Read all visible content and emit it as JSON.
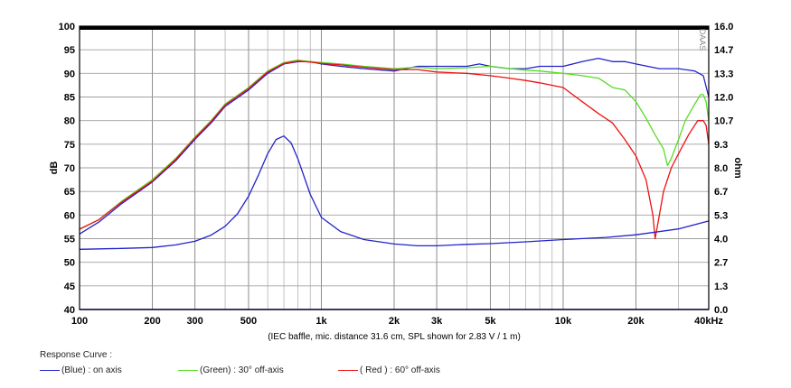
{
  "chart_data": {
    "type": "line",
    "watermark": "DAAS",
    "caption": "(IEC baffle, mic. distance 31.6 cm, SPL shown for 2.83 V / 1 m)",
    "x_axis": {
      "scale": "log",
      "range": [
        100,
        40000
      ],
      "unit_label": "kHz",
      "tick_values": [
        100,
        200,
        300,
        500,
        1000,
        2000,
        3000,
        5000,
        10000,
        20000,
        40000
      ],
      "tick_labels": [
        "100",
        "200",
        "300",
        "500",
        "1k",
        "2k",
        "3k",
        "5k",
        "10k",
        "20k",
        "40kHz"
      ]
    },
    "y_left": {
      "label": "dB",
      "range": [
        40,
        100
      ],
      "ticks": [
        "40",
        "45",
        "50",
        "55",
        "60",
        "65",
        "70",
        "75",
        "80",
        "85",
        "90",
        "95",
        "100"
      ]
    },
    "y_right": {
      "label": "ohm",
      "range": [
        0,
        16
      ],
      "ticks": [
        "0.0",
        "1.3",
        "2.7",
        "4.0",
        "5.3",
        "6.7",
        "8.0",
        "9.3",
        "10.7",
        "12.0",
        "13.3",
        "14.7",
        "16.0"
      ]
    },
    "grid": true,
    "legend": {
      "title": "Response Curve :",
      "items": [
        {
          "label": "(Blue) : on axis",
          "color": "#2222cc"
        },
        {
          "label": "(Green) : 30° off-axis",
          "color": "#55dd22"
        },
        {
          "label": "( Red ) : 60° off-axis",
          "color": "#ee1111"
        }
      ]
    },
    "series": [
      {
        "color": "#2222cc",
        "axis": "left",
        "points": [
          [
            100,
            56
          ],
          [
            120,
            58.5
          ],
          [
            150,
            62.5
          ],
          [
            200,
            67
          ],
          [
            250,
            71.5
          ],
          [
            300,
            76
          ],
          [
            350,
            79.5
          ],
          [
            400,
            83
          ],
          [
            500,
            86.5
          ],
          [
            600,
            90
          ],
          [
            700,
            92
          ],
          [
            800,
            92.5
          ],
          [
            900,
            92.5
          ],
          [
            1000,
            92
          ],
          [
            1200,
            91.5
          ],
          [
            1500,
            91
          ],
          [
            2000,
            90.5
          ],
          [
            2500,
            91.5
          ],
          [
            3000,
            91.5
          ],
          [
            4000,
            91.5
          ],
          [
            4500,
            92
          ],
          [
            5000,
            91.5
          ],
          [
            6000,
            91
          ],
          [
            7000,
            91
          ],
          [
            8000,
            91.5
          ],
          [
            9000,
            91.5
          ],
          [
            10000,
            91.5
          ],
          [
            12000,
            92.5
          ],
          [
            14000,
            93.2
          ],
          [
            16000,
            92.5
          ],
          [
            18000,
            92.5
          ],
          [
            20000,
            92
          ],
          [
            25000,
            91
          ],
          [
            30000,
            91
          ],
          [
            35000,
            90.5
          ],
          [
            38000,
            89.5
          ],
          [
            40000,
            85
          ]
        ]
      },
      {
        "color": "#55dd22",
        "axis": "left",
        "points": [
          [
            100,
            57
          ],
          [
            120,
            59
          ],
          [
            150,
            63
          ],
          [
            200,
            67.5
          ],
          [
            250,
            72
          ],
          [
            300,
            76.5
          ],
          [
            350,
            80
          ],
          [
            400,
            83.5
          ],
          [
            500,
            87
          ],
          [
            600,
            90.5
          ],
          [
            700,
            92.3
          ],
          [
            800,
            92.8
          ],
          [
            900,
            92.5
          ],
          [
            1000,
            92.3
          ],
          [
            1200,
            92
          ],
          [
            1500,
            91.5
          ],
          [
            2000,
            91
          ],
          [
            2500,
            91.3
          ],
          [
            3000,
            91
          ],
          [
            4000,
            91.2
          ],
          [
            5000,
            91.5
          ],
          [
            6000,
            91
          ],
          [
            7000,
            90.7
          ],
          [
            8000,
            90.5
          ],
          [
            10000,
            90
          ],
          [
            12000,
            89.5
          ],
          [
            14000,
            89
          ],
          [
            15000,
            88
          ],
          [
            16000,
            87
          ],
          [
            18000,
            86.5
          ],
          [
            20000,
            84
          ],
          [
            22000,
            80.5
          ],
          [
            24000,
            77
          ],
          [
            26000,
            74
          ],
          [
            27000,
            70.5
          ],
          [
            28000,
            72
          ],
          [
            30000,
            76
          ],
          [
            32000,
            80
          ],
          [
            35000,
            83.5
          ],
          [
            37000,
            85.5
          ],
          [
            38000,
            85.5
          ],
          [
            39000,
            84
          ],
          [
            40000,
            80
          ]
        ]
      },
      {
        "color": "#ee1111",
        "axis": "left",
        "points": [
          [
            100,
            57
          ],
          [
            120,
            59
          ],
          [
            150,
            62.8
          ],
          [
            200,
            67.2
          ],
          [
            250,
            71.8
          ],
          [
            300,
            76.3
          ],
          [
            350,
            79.8
          ],
          [
            400,
            83.3
          ],
          [
            500,
            86.8
          ],
          [
            600,
            90.3
          ],
          [
            700,
            92.1
          ],
          [
            800,
            92.6
          ],
          [
            900,
            92.4
          ],
          [
            1000,
            92.1
          ],
          [
            1200,
            91.8
          ],
          [
            1500,
            91.3
          ],
          [
            2000,
            90.8
          ],
          [
            2500,
            90.8
          ],
          [
            3000,
            90.3
          ],
          [
            4000,
            90
          ],
          [
            5000,
            89.5
          ],
          [
            6000,
            89
          ],
          [
            7000,
            88.5
          ],
          [
            8000,
            88
          ],
          [
            10000,
            87
          ],
          [
            12000,
            84
          ],
          [
            14000,
            81.5
          ],
          [
            16000,
            79.5
          ],
          [
            18000,
            76
          ],
          [
            20000,
            72.5
          ],
          [
            22000,
            67.5
          ],
          [
            23500,
            60
          ],
          [
            24000,
            55
          ],
          [
            25000,
            60
          ],
          [
            26000,
            65
          ],
          [
            28000,
            70
          ],
          [
            30000,
            73
          ],
          [
            33000,
            77
          ],
          [
            36000,
            80
          ],
          [
            38000,
            80
          ],
          [
            39000,
            79
          ],
          [
            40000,
            75
          ]
        ]
      },
      {
        "color": "#2222cc",
        "axis": "right",
        "points": [
          [
            100,
            3.4
          ],
          [
            150,
            3.45
          ],
          [
            200,
            3.5
          ],
          [
            250,
            3.65
          ],
          [
            300,
            3.85
          ],
          [
            350,
            4.2
          ],
          [
            400,
            4.7
          ],
          [
            450,
            5.4
          ],
          [
            500,
            6.4
          ],
          [
            550,
            7.6
          ],
          [
            600,
            8.8
          ],
          [
            650,
            9.6
          ],
          [
            700,
            9.8
          ],
          [
            750,
            9.4
          ],
          [
            800,
            8.5
          ],
          [
            900,
            6.5
          ],
          [
            1000,
            5.2
          ],
          [
            1200,
            4.4
          ],
          [
            1500,
            3.95
          ],
          [
            2000,
            3.7
          ],
          [
            2500,
            3.6
          ],
          [
            3000,
            3.6
          ],
          [
            4000,
            3.68
          ],
          [
            5000,
            3.72
          ],
          [
            7000,
            3.82
          ],
          [
            10000,
            3.95
          ],
          [
            15000,
            4.07
          ],
          [
            20000,
            4.22
          ],
          [
            30000,
            4.55
          ],
          [
            40000,
            5.0
          ]
        ]
      }
    ]
  }
}
